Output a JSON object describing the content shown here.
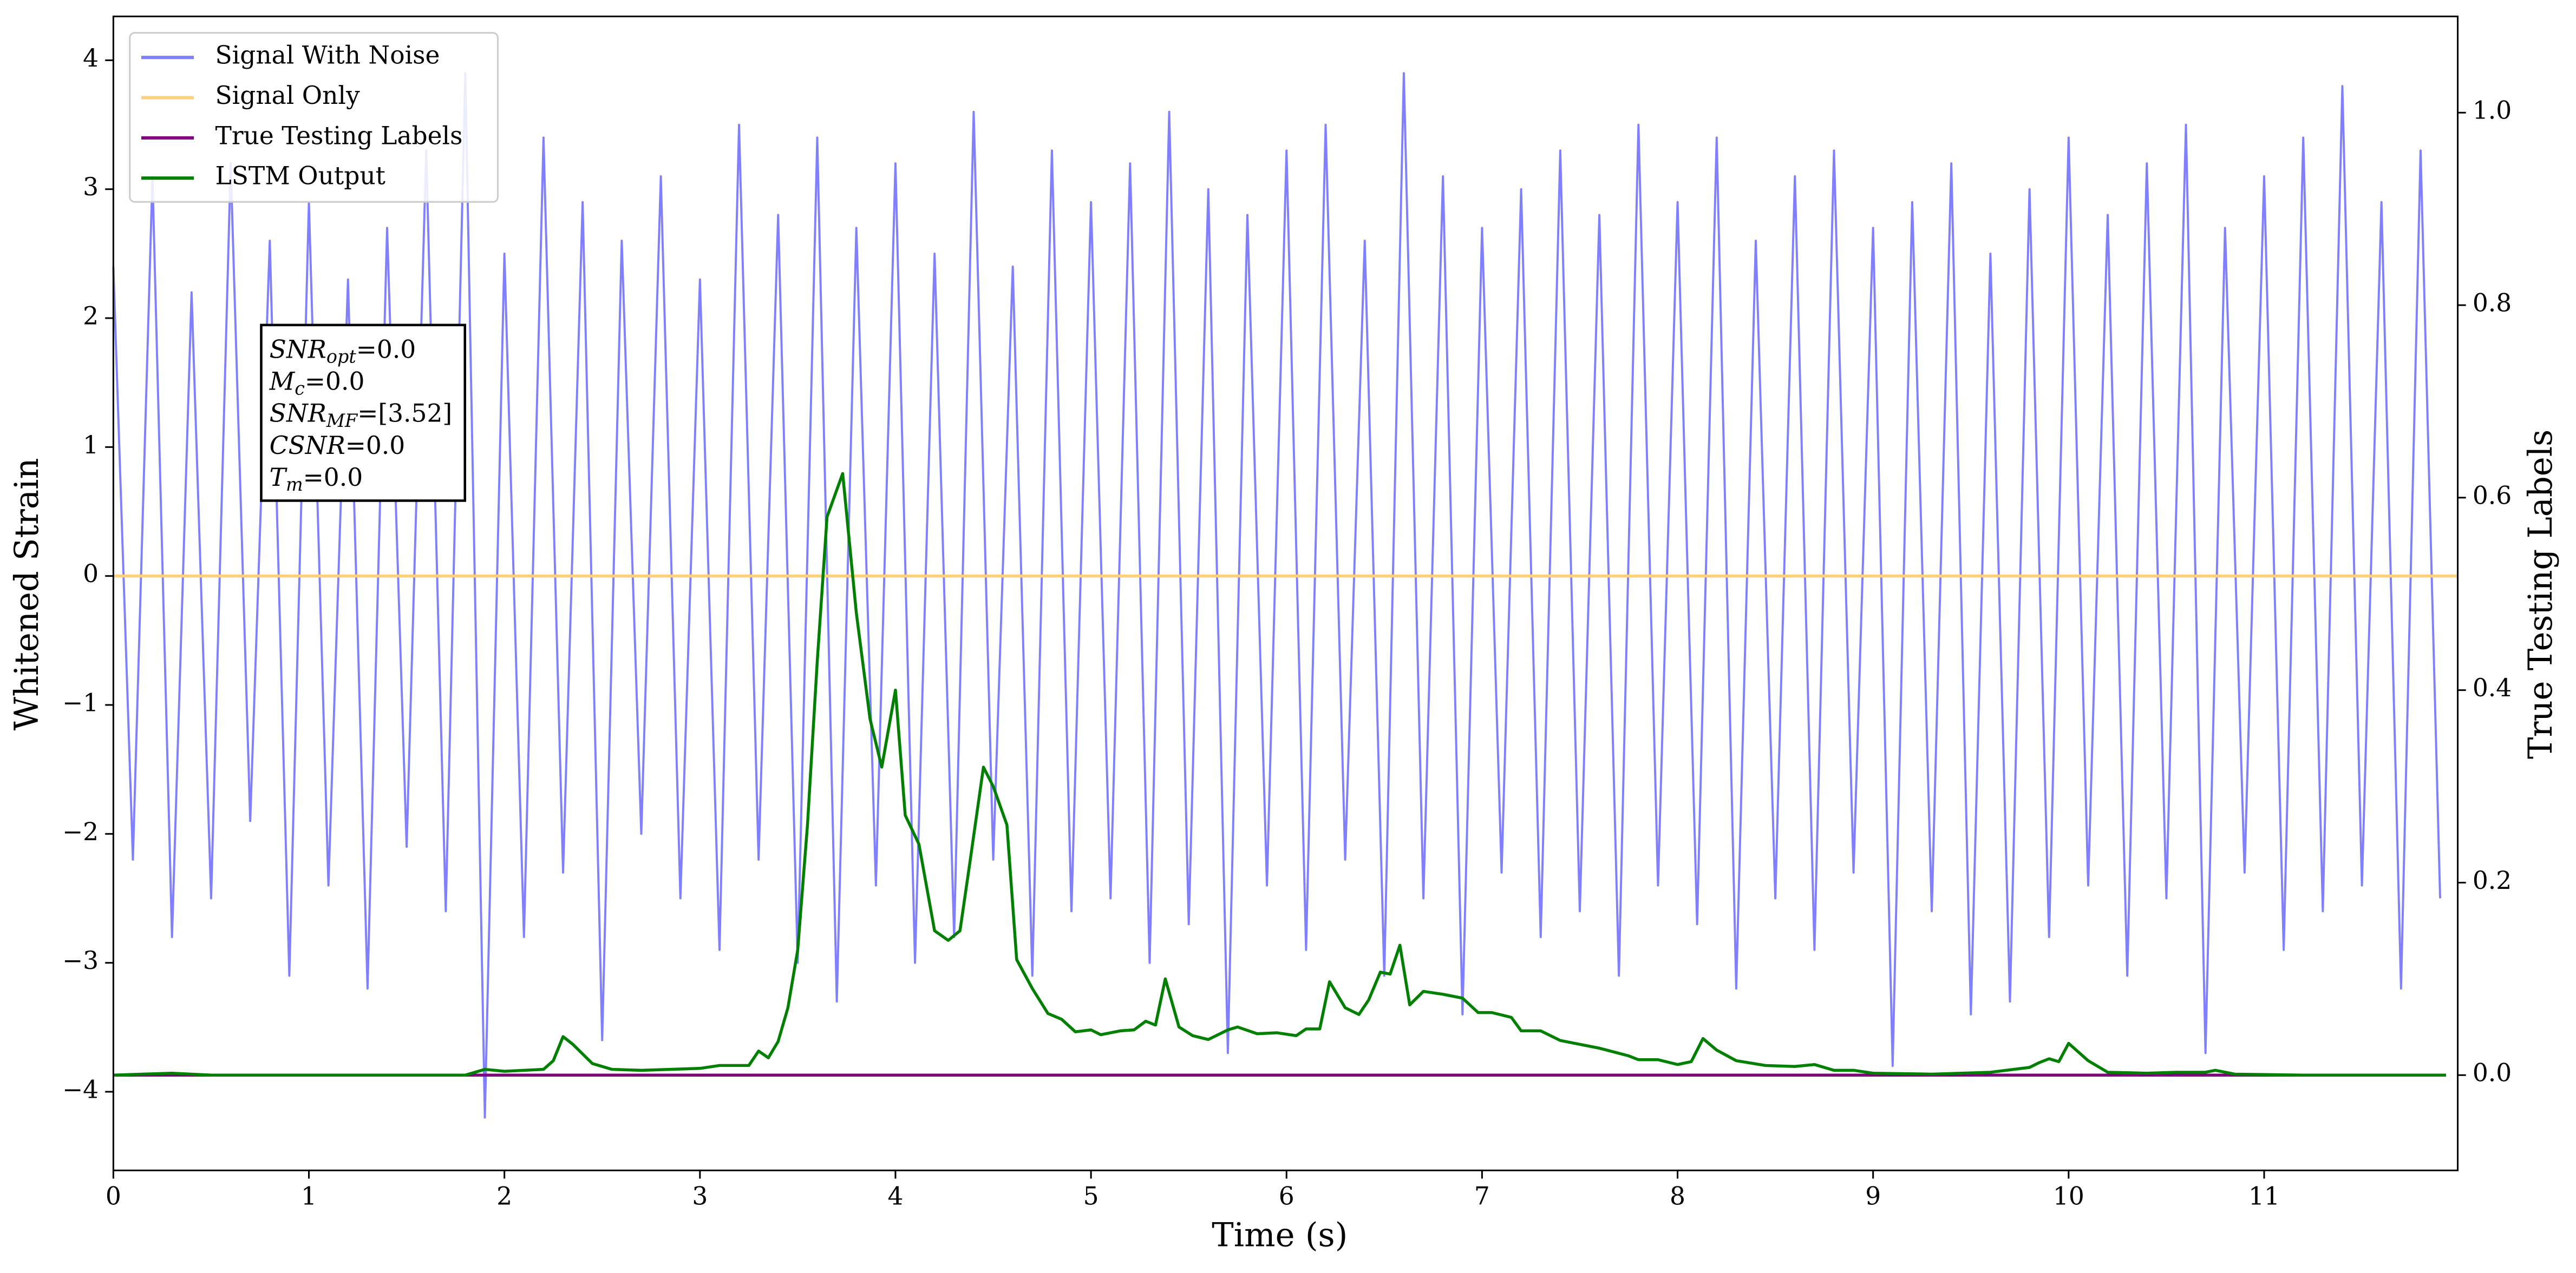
{
  "chart_data": {
    "type": "line",
    "xlabel": "Time (s)",
    "ylabel": "Whitened Strain",
    "y2label": "True Testing Labels",
    "xlim": [
      0,
      11.99
    ],
    "ylim": [
      -4.61,
      4.34
    ],
    "y2lim": [
      -0.099,
      1.1
    ],
    "xticks": [
      0,
      1,
      2,
      3,
      4,
      5,
      6,
      7,
      8,
      9,
      10,
      11
    ],
    "yticks": [
      {
        "value": -4,
        "label": "−4"
      },
      {
        "value": -3,
        "label": "−3"
      },
      {
        "value": -2,
        "label": "−2"
      },
      {
        "value": -1,
        "label": "−1"
      },
      0,
      1,
      2,
      3,
      4
    ],
    "y2ticks": [
      {
        "value": 0,
        "label": "0.0"
      },
      {
        "value": 0.2,
        "label": "0.2"
      },
      {
        "value": 0.4,
        "label": "0.4"
      },
      {
        "value": 0.6,
        "label": "0.6"
      },
      {
        "value": 0.8,
        "label": "0.8"
      },
      {
        "value": 1,
        "label": "1.0"
      }
    ],
    "grid": false,
    "legend": "upper left",
    "annotation": [
      {
        "base": "SNR",
        "sub": "opt",
        "rest": "=0.0"
      },
      {
        "base": "M",
        "sub": "c",
        "rest": "=0.0"
      },
      {
        "base": "SNR",
        "sub": "MF",
        "rest": "=[3.52]"
      },
      {
        "base": "CSNR",
        "sub": null,
        "rest": "=0.0"
      },
      {
        "base": "T",
        "sub": "m",
        "rest": "=0.0"
      }
    ],
    "series": [
      {
        "name": "Signal With Noise",
        "color": "#7f7fff",
        "axis": "y",
        "x": [
          0,
          0.1,
          0.2,
          0.3,
          0.4,
          0.5,
          0.6,
          0.7,
          0.8,
          0.9,
          1,
          1.1,
          1.2,
          1.3,
          1.4,
          1.5,
          1.6,
          1.7,
          1.8,
          1.9,
          2,
          2.1,
          2.2,
          2.3,
          2.4,
          2.5,
          2.6,
          2.7,
          2.8,
          2.9,
          3,
          3.1,
          3.2,
          3.3,
          3.4,
          3.5,
          3.6,
          3.7,
          3.8,
          3.9,
          4,
          4.1,
          4.2,
          4.3,
          4.4,
          4.5,
          4.6,
          4.7,
          4.8,
          4.9,
          5,
          5.1,
          5.2,
          5.3,
          5.4,
          5.5,
          5.6,
          5.7,
          5.8,
          5.9,
          6,
          6.1,
          6.2,
          6.3,
          6.4,
          6.5,
          6.6,
          6.7,
          6.8,
          6.9,
          7,
          7.1,
          7.2,
          7.3,
          7.4,
          7.5,
          7.6,
          7.7,
          7.8,
          7.9,
          8,
          8.1,
          8.2,
          8.3,
          8.4,
          8.5,
          8.6,
          8.7,
          8.8,
          8.9,
          9,
          9.1,
          9.2,
          9.3,
          9.4,
          9.5,
          9.6,
          9.7,
          9.8,
          9.9,
          10,
          10.1,
          10.2,
          10.3,
          10.4,
          10.5,
          10.6,
          10.7,
          10.8,
          10.9,
          11,
          11.1,
          11.2,
          11.3,
          11.4,
          11.5,
          11.6,
          11.7,
          11.8,
          11.9
        ],
        "values": [
          2.4,
          -2.2,
          3.1,
          -2.8,
          2.2,
          -2.5,
          3.2,
          -1.9,
          2.6,
          -3.1,
          2.9,
          -2.4,
          2.3,
          -3.2,
          2.7,
          -2.1,
          3.3,
          -2.6,
          3.9,
          -4.2,
          2.5,
          -2.8,
          3.4,
          -2.3,
          2.9,
          -3.6,
          2.6,
          -2.0,
          3.1,
          -2.5,
          2.3,
          -2.9,
          3.5,
          -2.2,
          2.8,
          -3.0,
          3.4,
          -3.3,
          2.7,
          -2.4,
          3.2,
          -3.0,
          2.5,
          -2.8,
          3.6,
          -2.2,
          2.4,
          -3.1,
          3.3,
          -2.6,
          2.9,
          -2.5,
          3.2,
          -3.0,
          3.6,
          -2.7,
          3.0,
          -3.7,
          2.8,
          -2.4,
          3.3,
          -2.9,
          3.5,
          -2.2,
          2.6,
          -3.1,
          3.9,
          -2.5,
          3.1,
          -3.4,
          2.7,
          -2.3,
          3.0,
          -2.8,
          3.3,
          -2.6,
          2.8,
          -3.1,
          3.5,
          -2.4,
          2.9,
          -2.7,
          3.4,
          -3.2,
          2.6,
          -2.5,
          3.1,
          -2.9,
          3.3,
          -2.3,
          2.7,
          -3.8,
          2.9,
          -2.6,
          3.2,
          -3.4,
          2.5,
          -3.3,
          3.0,
          -2.8,
          3.4,
          -2.4,
          2.8,
          -3.1,
          3.2,
          -2.5,
          3.5,
          -3.7,
          2.7,
          -2.3,
          3.1,
          -2.9,
          3.4,
          -2.6,
          3.8,
          -2.4,
          2.9,
          -3.2,
          3.3,
          -2.5
        ]
      },
      {
        "name": "Signal Only",
        "color": "#ffcf80",
        "axis": "y",
        "x": [
          0,
          11.99
        ],
        "values": [
          0,
          0
        ]
      },
      {
        "name": "True Testing Labels",
        "color": "#800080",
        "axis": "y2",
        "x": [
          0,
          11.93
        ],
        "values": [
          0,
          0
        ]
      },
      {
        "name": "LSTM Output",
        "color": "#008000",
        "axis": "y2",
        "x": [
          0,
          0.3,
          0.5,
          1.8,
          1.9,
          2.0,
          2.2,
          2.25,
          2.3,
          2.35,
          2.45,
          2.55,
          2.7,
          3.0,
          3.1,
          3.25,
          3.3,
          3.35,
          3.4,
          3.45,
          3.5,
          3.55,
          3.6,
          3.65,
          3.73,
          3.8,
          3.87,
          3.93,
          4.0,
          4.05,
          4.12,
          4.2,
          4.27,
          4.33,
          4.38,
          4.45,
          4.5,
          4.57,
          4.62,
          4.7,
          4.78,
          4.85,
          4.92,
          5.0,
          5.05,
          5.15,
          5.22,
          5.28,
          5.33,
          5.38,
          5.45,
          5.52,
          5.6,
          5.7,
          5.75,
          5.85,
          5.95,
          6.05,
          6.1,
          6.17,
          6.22,
          6.3,
          6.37,
          6.42,
          6.48,
          6.53,
          6.58,
          6.63,
          6.7,
          6.8,
          6.9,
          6.98,
          7.05,
          7.15,
          7.2,
          7.3,
          7.4,
          7.6,
          7.75,
          7.8,
          7.9,
          8.0,
          8.07,
          8.13,
          8.2,
          8.3,
          8.45,
          8.6,
          8.7,
          8.8,
          8.9,
          9.0,
          9.3,
          9.6,
          9.8,
          9.85,
          9.9,
          9.95,
          10.0,
          10.1,
          10.2,
          10.4,
          10.55,
          10.7,
          10.75,
          10.85,
          11.2,
          11.93
        ],
        "values": [
          0,
          0.002,
          0,
          0,
          0.006,
          0.004,
          0.006,
          0.015,
          0.04,
          0.032,
          0.012,
          0.006,
          0.005,
          0.007,
          0.01,
          0.01,
          0.025,
          0.018,
          0.035,
          0.07,
          0.13,
          0.26,
          0.43,
          0.58,
          0.625,
          0.48,
          0.37,
          0.32,
          0.4,
          0.27,
          0.24,
          0.15,
          0.14,
          0.15,
          0.22,
          0.32,
          0.3,
          0.26,
          0.12,
          0.09,
          0.064,
          0.058,
          0.045,
          0.047,
          0.042,
          0.046,
          0.047,
          0.056,
          0.052,
          0.1,
          0.05,
          0.041,
          0.037,
          0.047,
          0.05,
          0.043,
          0.044,
          0.041,
          0.048,
          0.048,
          0.097,
          0.07,
          0.063,
          0.078,
          0.107,
          0.105,
          0.135,
          0.073,
          0.087,
          0.084,
          0.08,
          0.065,
          0.065,
          0.06,
          0.046,
          0.046,
          0.036,
          0.028,
          0.02,
          0.016,
          0.016,
          0.011,
          0.014,
          0.038,
          0.026,
          0.015,
          0.01,
          0.009,
          0.011,
          0.005,
          0.005,
          0.002,
          0.001,
          0.003,
          0.008,
          0.013,
          0.017,
          0.014,
          0.033,
          0.015,
          0.003,
          0.002,
          0.003,
          0.003,
          0.005,
          0.001,
          0,
          0
        ]
      }
    ]
  }
}
